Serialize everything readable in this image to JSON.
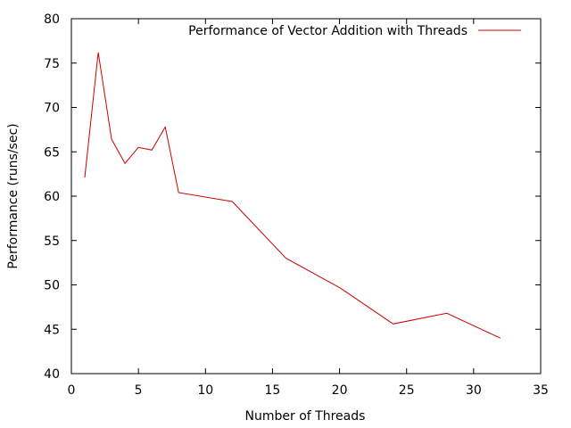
{
  "chart_data": {
    "type": "line",
    "title": "",
    "xlabel": "Number of Threads",
    "ylabel": "Performance (runs/sec)",
    "xlim": [
      0,
      35
    ],
    "ylim": [
      40,
      80
    ],
    "x_ticks": [
      0,
      5,
      10,
      15,
      20,
      25,
      30,
      35
    ],
    "y_ticks": [
      40,
      45,
      50,
      55,
      60,
      65,
      70,
      75,
      80
    ],
    "grid": false,
    "legend_position": "top-right",
    "series": [
      {
        "name": "Performance of Vector Addition with Threads",
        "color": "#cc0000",
        "x": [
          1,
          2,
          3,
          4,
          5,
          6,
          7,
          8,
          12,
          16,
          20,
          24,
          28,
          32
        ],
        "y": [
          62.1,
          76.2,
          66.4,
          63.7,
          65.5,
          65.2,
          67.8,
          60.4,
          59.4,
          53.0,
          49.7,
          45.6,
          46.8,
          44.0
        ]
      }
    ]
  }
}
